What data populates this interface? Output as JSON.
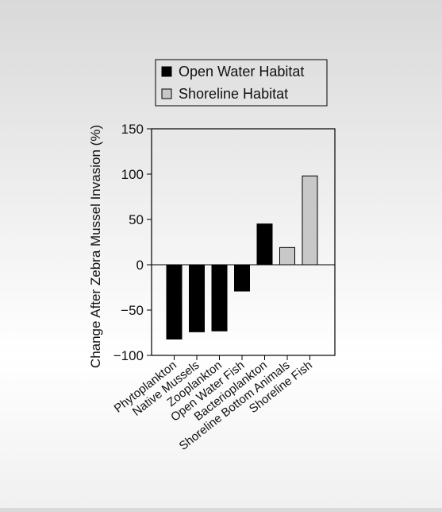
{
  "chart_data": {
    "type": "bar",
    "categories": [
      "Phytoplankton",
      "Native Mussels",
      "Zooplankton",
      "Open Water Fish",
      "Bacterioplankton",
      "Shoreline Bottom Animals",
      "Shoreline Fish"
    ],
    "values": [
      -82,
      -74,
      -73,
      -29,
      45,
      19,
      98
    ],
    "bar_series": [
      0,
      0,
      0,
      0,
      0,
      1,
      1
    ],
    "series": [
      {
        "name": "Open Water Habitat",
        "color": "#000000"
      },
      {
        "name": "Shoreline Habitat",
        "color": "#c8c8c8"
      }
    ],
    "ylabel": "Change After Zebra Mussel Invasion (%)",
    "xlabel": "",
    "title": "",
    "ylim": [
      -100,
      150
    ],
    "yticks": [
      "150",
      "100",
      "50",
      "0",
      "−50",
      "−100"
    ],
    "ytick_values": [
      150,
      100,
      50,
      0,
      -50,
      -100
    ],
    "grid": false,
    "legend_position": "top"
  }
}
